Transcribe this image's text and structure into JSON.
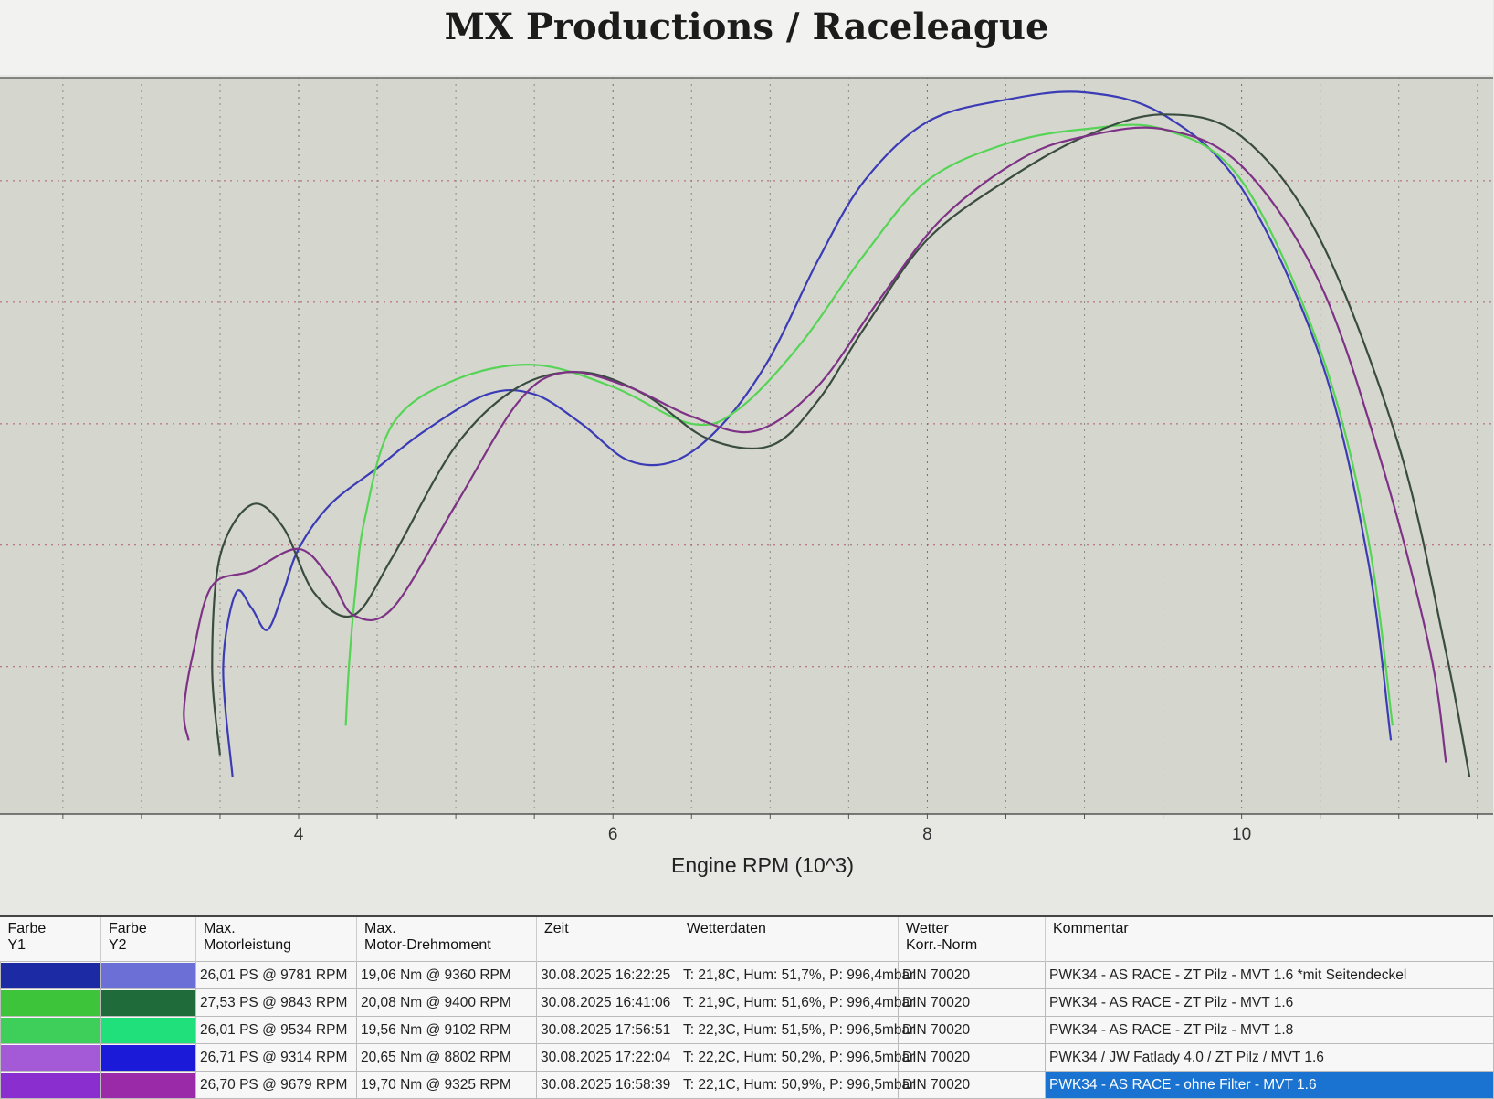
{
  "title": "MX Productions / Raceleague",
  "chart_data": {
    "type": "line",
    "title": "MX Productions / Raceleague",
    "xlabel": "Engine RPM (10^3)",
    "ylabel": "",
    "xlim": [
      2.1,
      11.6
    ],
    "ylim": [
      0,
      100
    ],
    "x_ticks": [
      4,
      6,
      8,
      10
    ],
    "grid": true,
    "series": [
      {
        "color": "#3b3bb5",
        "points": [
          [
            3.58,
            5
          ],
          [
            3.52,
            20
          ],
          [
            3.6,
            30
          ],
          [
            3.7,
            28
          ],
          [
            3.8,
            25
          ],
          [
            3.9,
            30
          ],
          [
            4,
            36
          ],
          [
            4.2,
            42
          ],
          [
            4.5,
            47
          ],
          [
            4.8,
            52
          ],
          [
            5.2,
            57
          ],
          [
            5.5,
            57
          ],
          [
            5.8,
            53
          ],
          [
            6.1,
            48
          ],
          [
            6.4,
            48
          ],
          [
            6.7,
            53
          ],
          [
            7.0,
            62
          ],
          [
            7.3,
            75
          ],
          [
            7.6,
            86
          ],
          [
            8.0,
            94
          ],
          [
            8.5,
            97
          ],
          [
            9.0,
            98
          ],
          [
            9.5,
            95
          ],
          [
            10.0,
            85
          ],
          [
            10.5,
            62
          ],
          [
            10.8,
            35
          ],
          [
            10.95,
            10
          ]
        ]
      },
      {
        "color": "#55d455",
        "points": [
          [
            4.3,
            12
          ],
          [
            4.32,
            20
          ],
          [
            4.36,
            30
          ],
          [
            4.42,
            40
          ],
          [
            4.6,
            53
          ],
          [
            5.0,
            59
          ],
          [
            5.5,
            61
          ],
          [
            6.0,
            58
          ],
          [
            6.5,
            53
          ],
          [
            6.8,
            55
          ],
          [
            7.2,
            64
          ],
          [
            7.6,
            76
          ],
          [
            8.0,
            86
          ],
          [
            8.5,
            91
          ],
          [
            9.0,
            93
          ],
          [
            9.5,
            93
          ],
          [
            10.0,
            86
          ],
          [
            10.5,
            63
          ],
          [
            10.8,
            38
          ],
          [
            10.96,
            12
          ]
        ]
      },
      {
        "color": "#3a4c40",
        "points": [
          [
            3.5,
            8
          ],
          [
            3.45,
            20
          ],
          [
            3.5,
            35
          ],
          [
            3.7,
            42
          ],
          [
            3.9,
            39
          ],
          [
            4.1,
            30
          ],
          [
            4.35,
            27
          ],
          [
            4.6,
            35
          ],
          [
            5.0,
            50
          ],
          [
            5.4,
            58
          ],
          [
            5.8,
            60
          ],
          [
            6.2,
            57
          ],
          [
            6.6,
            51
          ],
          [
            7.0,
            50
          ],
          [
            7.3,
            56
          ],
          [
            7.6,
            66
          ],
          [
            8.0,
            78
          ],
          [
            8.5,
            86
          ],
          [
            9.0,
            92
          ],
          [
            9.5,
            95
          ],
          [
            10.0,
            92
          ],
          [
            10.5,
            78
          ],
          [
            11.0,
            50
          ],
          [
            11.3,
            22
          ],
          [
            11.45,
            5
          ]
        ]
      },
      {
        "color": "#7e3286",
        "points": [
          [
            3.3,
            10
          ],
          [
            3.27,
            14
          ],
          [
            3.33,
            22
          ],
          [
            3.45,
            31
          ],
          [
            3.7,
            33
          ],
          [
            4.0,
            36
          ],
          [
            4.2,
            32
          ],
          [
            4.35,
            27
          ],
          [
            4.6,
            28
          ],
          [
            5.0,
            42
          ],
          [
            5.4,
            56
          ],
          [
            5.7,
            60
          ],
          [
            6.1,
            58
          ],
          [
            6.5,
            54
          ],
          [
            6.9,
            52
          ],
          [
            7.3,
            58
          ],
          [
            7.7,
            70
          ],
          [
            8.1,
            81
          ],
          [
            8.6,
            89
          ],
          [
            9.0,
            92
          ],
          [
            9.5,
            93
          ],
          [
            10.0,
            88
          ],
          [
            10.5,
            72
          ],
          [
            10.9,
            47
          ],
          [
            11.2,
            22
          ],
          [
            11.3,
            7
          ]
        ]
      }
    ]
  },
  "table": {
    "headers": [
      "Farbe\nY1",
      "Farbe\nY2",
      "Max.\nMotorleistung",
      "Max.\nMotor-Drehmoment",
      "Zeit",
      "Wetterdaten",
      "Wetter\nKorr.-Norm",
      "Kommentar"
    ],
    "rows": [
      {
        "y1": "#1c2aa3",
        "y2": "#6b6fd6",
        "power": "26,01 PS @ 9781 RPM",
        "torque": "19,06 Nm @ 9360 RPM",
        "time": "30.08.2025 16:22:25",
        "weather": "T: 21,8C, Hum: 51,7%, P: 996,4mbar",
        "norm": "DIN 70020",
        "comment": "PWK34 -  AS RACE - ZT Pilz - MVT 1.6 *mit Seitendeckel"
      },
      {
        "y1": "#3ec43a",
        "y2": "#1f6b3a",
        "power": "27,53 PS @ 9843 RPM",
        "torque": "20,08 Nm @ 9400 RPM",
        "time": "30.08.2025 16:41:06",
        "weather": "T: 21,9C, Hum: 51,6%, P: 996,4mbar",
        "norm": "DIN 70020",
        "comment": "PWK34 -  AS RACE - ZT Pilz - MVT 1.6"
      },
      {
        "y1": "#3dcf5a",
        "y2": "#1fe07a",
        "power": "26,01 PS @ 9534 RPM",
        "torque": "19,56 Nm @ 9102 RPM",
        "time": "30.08.2025 17:56:51",
        "weather": "T: 22,3C, Hum: 51,5%, P: 996,5mbar",
        "norm": "DIN 70020",
        "comment": "PWK34 -  AS RACE - ZT Pilz - MVT 1.8"
      },
      {
        "y1": "#a45ad6",
        "y2": "#1a1ad8",
        "power": "26,71 PS @ 9314 RPM",
        "torque": "20,65 Nm @ 8802 RPM",
        "time": "30.08.2025 17:22:04",
        "weather": "T: 22,2C, Hum: 50,2%, P: 996,5mbar",
        "norm": "DIN 70020",
        "comment": "PWK34 / JW Fatlady 4.0 / ZT Pilz / MVT 1.6"
      },
      {
        "y1": "#8a2ed0",
        "y2": "#9a2aa8",
        "power": "26,70 PS @ 9679 RPM",
        "torque": "19,70 Nm @ 9325 RPM",
        "time": "30.08.2025 16:58:39",
        "weather": "T: 22,1C, Hum: 50,9%, P: 996,5mbar",
        "norm": "DIN 70020",
        "comment": "PWK34 -  AS RACE - ohne Filter - MVT 1.6",
        "selected": true
      }
    ]
  }
}
